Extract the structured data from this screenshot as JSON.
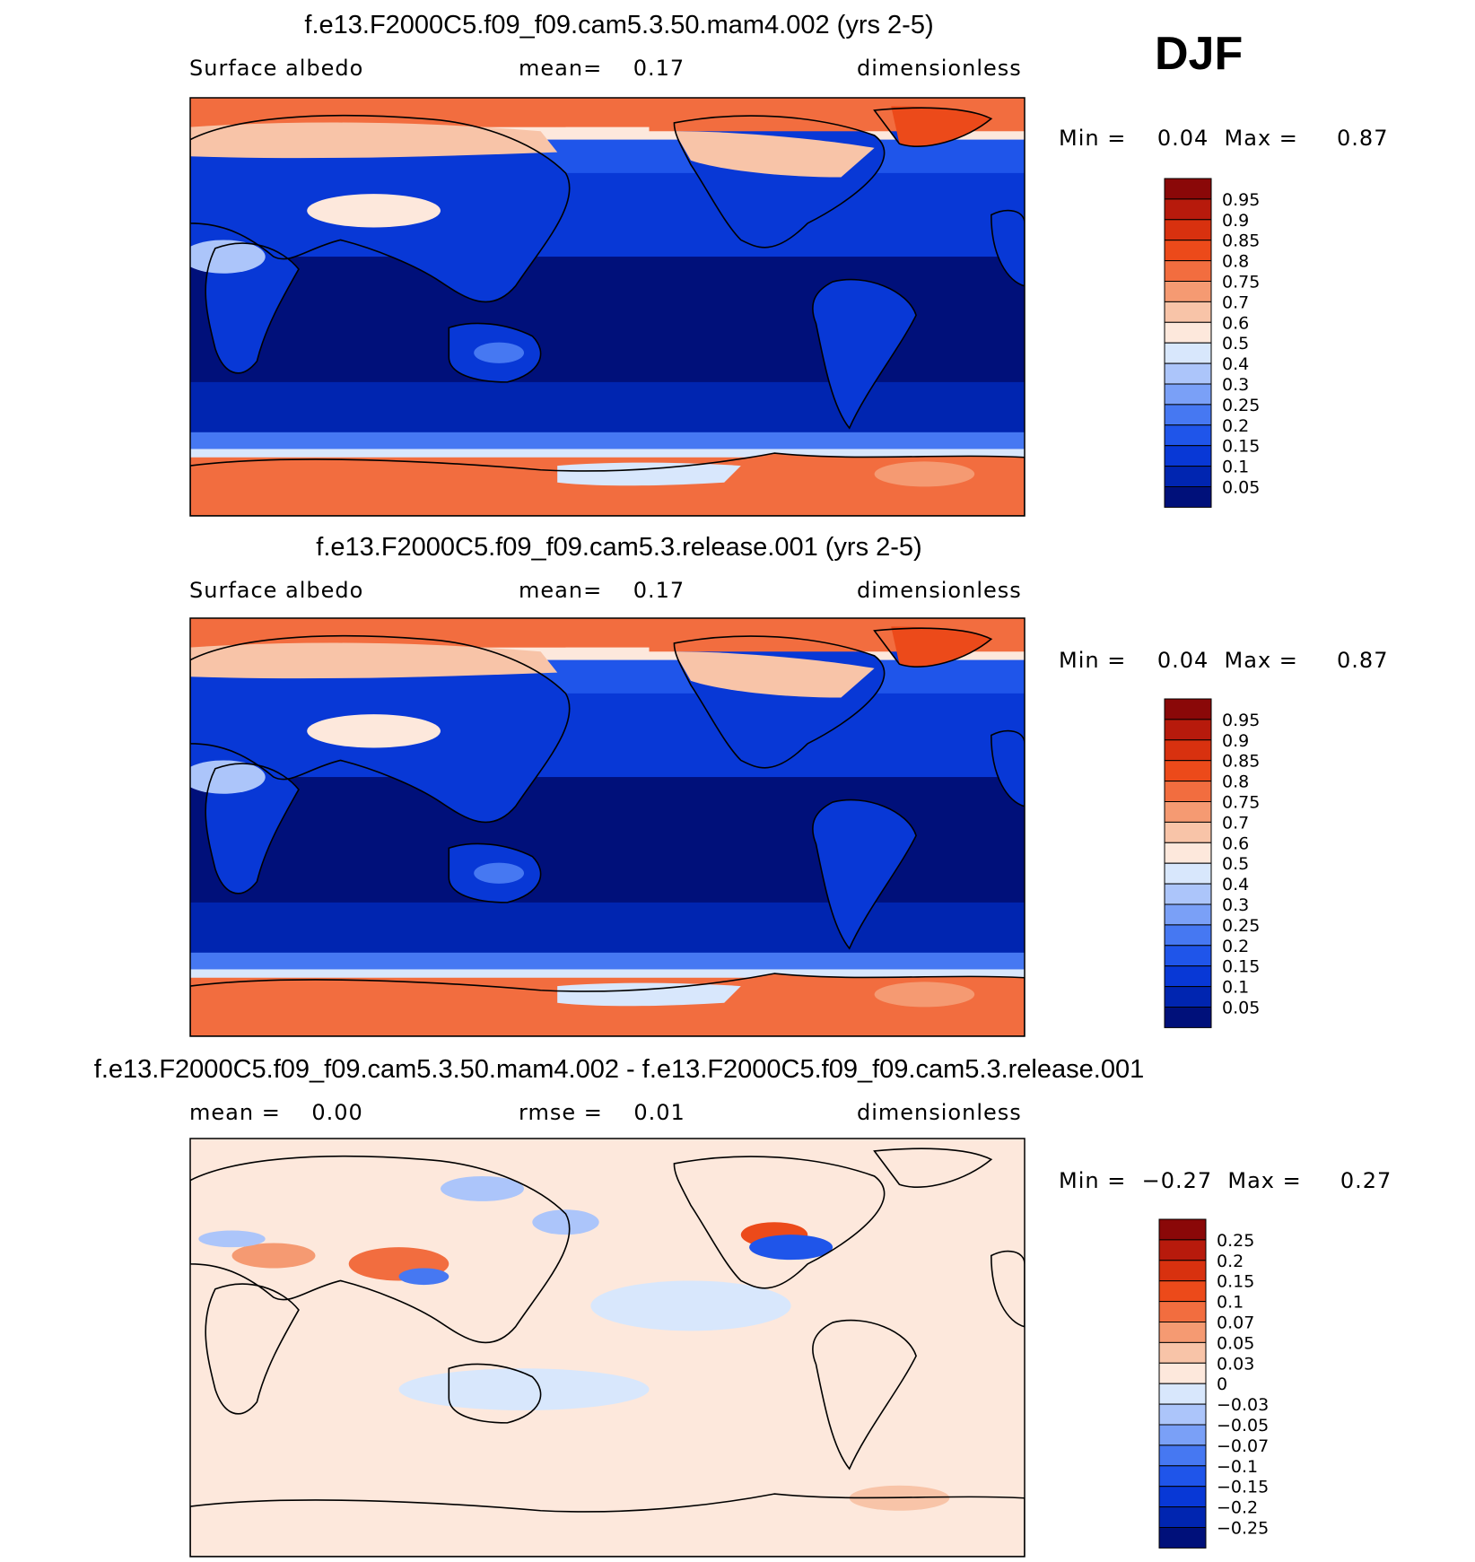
{
  "season_label": "DJF",
  "colors": {
    "albedo_levels": [
      "#00107a",
      "#0025b0",
      "#0838d6",
      "#1f55ea",
      "#4678f2",
      "#7aa0f7",
      "#acc5fa",
      "#d8e7fc",
      "#fde8dc",
      "#f8c4a8",
      "#f59a72",
      "#f26d3f",
      "#ec4a1a",
      "#d8310f",
      "#b71a0c",
      "#8a0808"
    ],
    "diff_levels": [
      "#00107a",
      "#0025b0",
      "#0838d6",
      "#1f55ea",
      "#4678f2",
      "#7aa0f7",
      "#acc5fa",
      "#d8e7fc",
      "#fde8dc",
      "#f8c4a8",
      "#f59a72",
      "#f26d3f",
      "#ec4a1a",
      "#d8310f",
      "#b71a0c",
      "#8a0808"
    ],
    "coastline": "#000000"
  },
  "panels": [
    {
      "title": "f.e13.F2000C5.f09_f09.cam5.3.50.mam4.002 (yrs 2-5)",
      "left_label": "Surface albedo",
      "center_label": "mean=    0.17",
      "right_label": "dimensionless",
      "stats": "Min =    0.04  Max =     0.87",
      "colorbar_ticks": [
        "0.95",
        "0.9",
        "0.85",
        "0.8",
        "0.75",
        "0.7",
        "0.6",
        "0.5",
        "0.4",
        "0.3",
        "0.25",
        "0.2",
        "0.15",
        "0.1",
        "0.05"
      ]
    },
    {
      "title": "f.e13.F2000C5.f09_f09.cam5.3.release.001 (yrs 2-5)",
      "left_label": "Surface albedo",
      "center_label": "mean=    0.17",
      "right_label": "dimensionless",
      "stats": "Min =    0.04  Max =     0.87",
      "colorbar_ticks": [
        "0.95",
        "0.9",
        "0.85",
        "0.8",
        "0.75",
        "0.7",
        "0.6",
        "0.5",
        "0.4",
        "0.3",
        "0.25",
        "0.2",
        "0.15",
        "0.1",
        "0.05"
      ]
    },
    {
      "title": "f.e13.F2000C5.f09_f09.cam5.3.50.mam4.002 - f.e13.F2000C5.f09_f09.cam5.3.release.001",
      "left_label": "mean =    0.00",
      "center_label": "rmse =    0.01",
      "right_label": "dimensionless",
      "stats": "Min =  −0.27  Max =     0.27",
      "colorbar_ticks": [
        "0.25",
        "0.2",
        "0.15",
        "0.1",
        "0.07",
        "0.05",
        "0.03",
        "0",
        "−0.03",
        "−0.05",
        "−0.07",
        "−0.1",
        "−0.15",
        "−0.2",
        "−0.25"
      ]
    }
  ],
  "chart_data": [
    {
      "type": "heatmap",
      "title": "f.e13.F2000C5.f09_f09.cam5.3.50.mam4.002 (yrs 2-5)",
      "variable": "Surface albedo",
      "units": "dimensionless",
      "season": "DJF",
      "mean": 0.17,
      "min": 0.04,
      "max": 0.87,
      "contour_levels": [
        0.05,
        0.1,
        0.15,
        0.2,
        0.25,
        0.3,
        0.4,
        0.5,
        0.6,
        0.7,
        0.75,
        0.8,
        0.85,
        0.9,
        0.95
      ],
      "projection": "cylindrical equidistant, centered on 180°",
      "grid": false
    },
    {
      "type": "heatmap",
      "title": "f.e13.F2000C5.f09_f09.cam5.3.release.001 (yrs 2-5)",
      "variable": "Surface albedo",
      "units": "dimensionless",
      "season": "DJF",
      "mean": 0.17,
      "min": 0.04,
      "max": 0.87,
      "contour_levels": [
        0.05,
        0.1,
        0.15,
        0.2,
        0.25,
        0.3,
        0.4,
        0.5,
        0.6,
        0.7,
        0.75,
        0.8,
        0.85,
        0.9,
        0.95
      ],
      "projection": "cylindrical equidistant, centered on 180°",
      "grid": false
    },
    {
      "type": "heatmap",
      "title": "f.e13.F2000C5.f09_f09.cam5.3.50.mam4.002 - f.e13.F2000C5.f09_f09.cam5.3.release.001",
      "units": "dimensionless",
      "season": "DJF",
      "mean": 0.0,
      "rmse": 0.01,
      "min": -0.27,
      "max": 0.27,
      "contour_levels": [
        -0.25,
        -0.2,
        -0.15,
        -0.1,
        -0.07,
        -0.05,
        -0.03,
        0,
        0.03,
        0.05,
        0.07,
        0.1,
        0.15,
        0.2,
        0.25
      ],
      "projection": "cylindrical equidistant, centered on 180°",
      "grid": false
    }
  ]
}
